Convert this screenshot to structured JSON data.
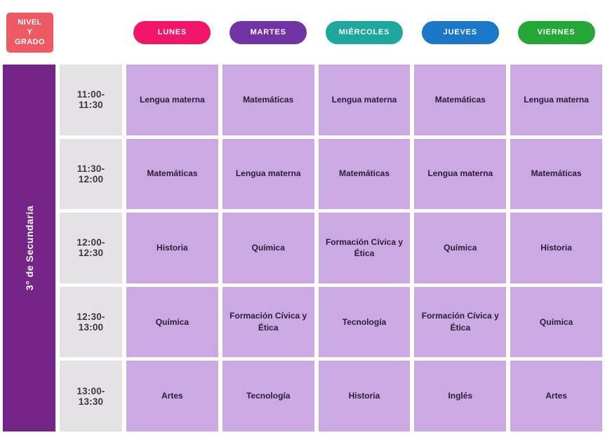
{
  "header": {
    "corner_label": "NIVEL\nY\nGRADO",
    "corner_color": "#EE5A63",
    "days": [
      {
        "label": "LUNES",
        "color": "#F2166B"
      },
      {
        "label": "MARTES",
        "color": "#7233A5"
      },
      {
        "label": "MIÉRCOLES",
        "color": "#1EA79D"
      },
      {
        "label": "JUEVES",
        "color": "#1B77C8"
      },
      {
        "label": "VIERNES",
        "color": "#25A737"
      }
    ]
  },
  "level": {
    "label": "3° de Secundaria",
    "color": "#752487"
  },
  "cell_styles": {
    "time_bg": "#E4E2E4",
    "time_text": "#3A3A3A",
    "subject_bg": "#CBA9E3",
    "subject_text": "#2E1B39"
  },
  "schedule": {
    "rows": [
      {
        "time": "11:00-11:30",
        "subjects": [
          "Lengua materna",
          "Matemáticas",
          "Lengua materna",
          "Matemáticas",
          "Lengua materna"
        ]
      },
      {
        "time": "11:30-12:00",
        "subjects": [
          "Matemáticas",
          "Lengua materna",
          "Matemáticas",
          "Lengua materna",
          "Matemáticas"
        ]
      },
      {
        "time": "12:00-12:30",
        "subjects": [
          "Historia",
          "Química",
          "Formación Cívica y Ética",
          "Química",
          "Historia"
        ]
      },
      {
        "time": "12:30-13:00",
        "subjects": [
          "Química",
          "Formación Cívica y Ética",
          "Tecnología",
          "Formación Cívica y Ética",
          "Química"
        ]
      },
      {
        "time": "13:00-13:30",
        "subjects": [
          "Artes",
          "Tecnología",
          "Historia",
          "Inglés",
          "Artes"
        ]
      }
    ]
  }
}
